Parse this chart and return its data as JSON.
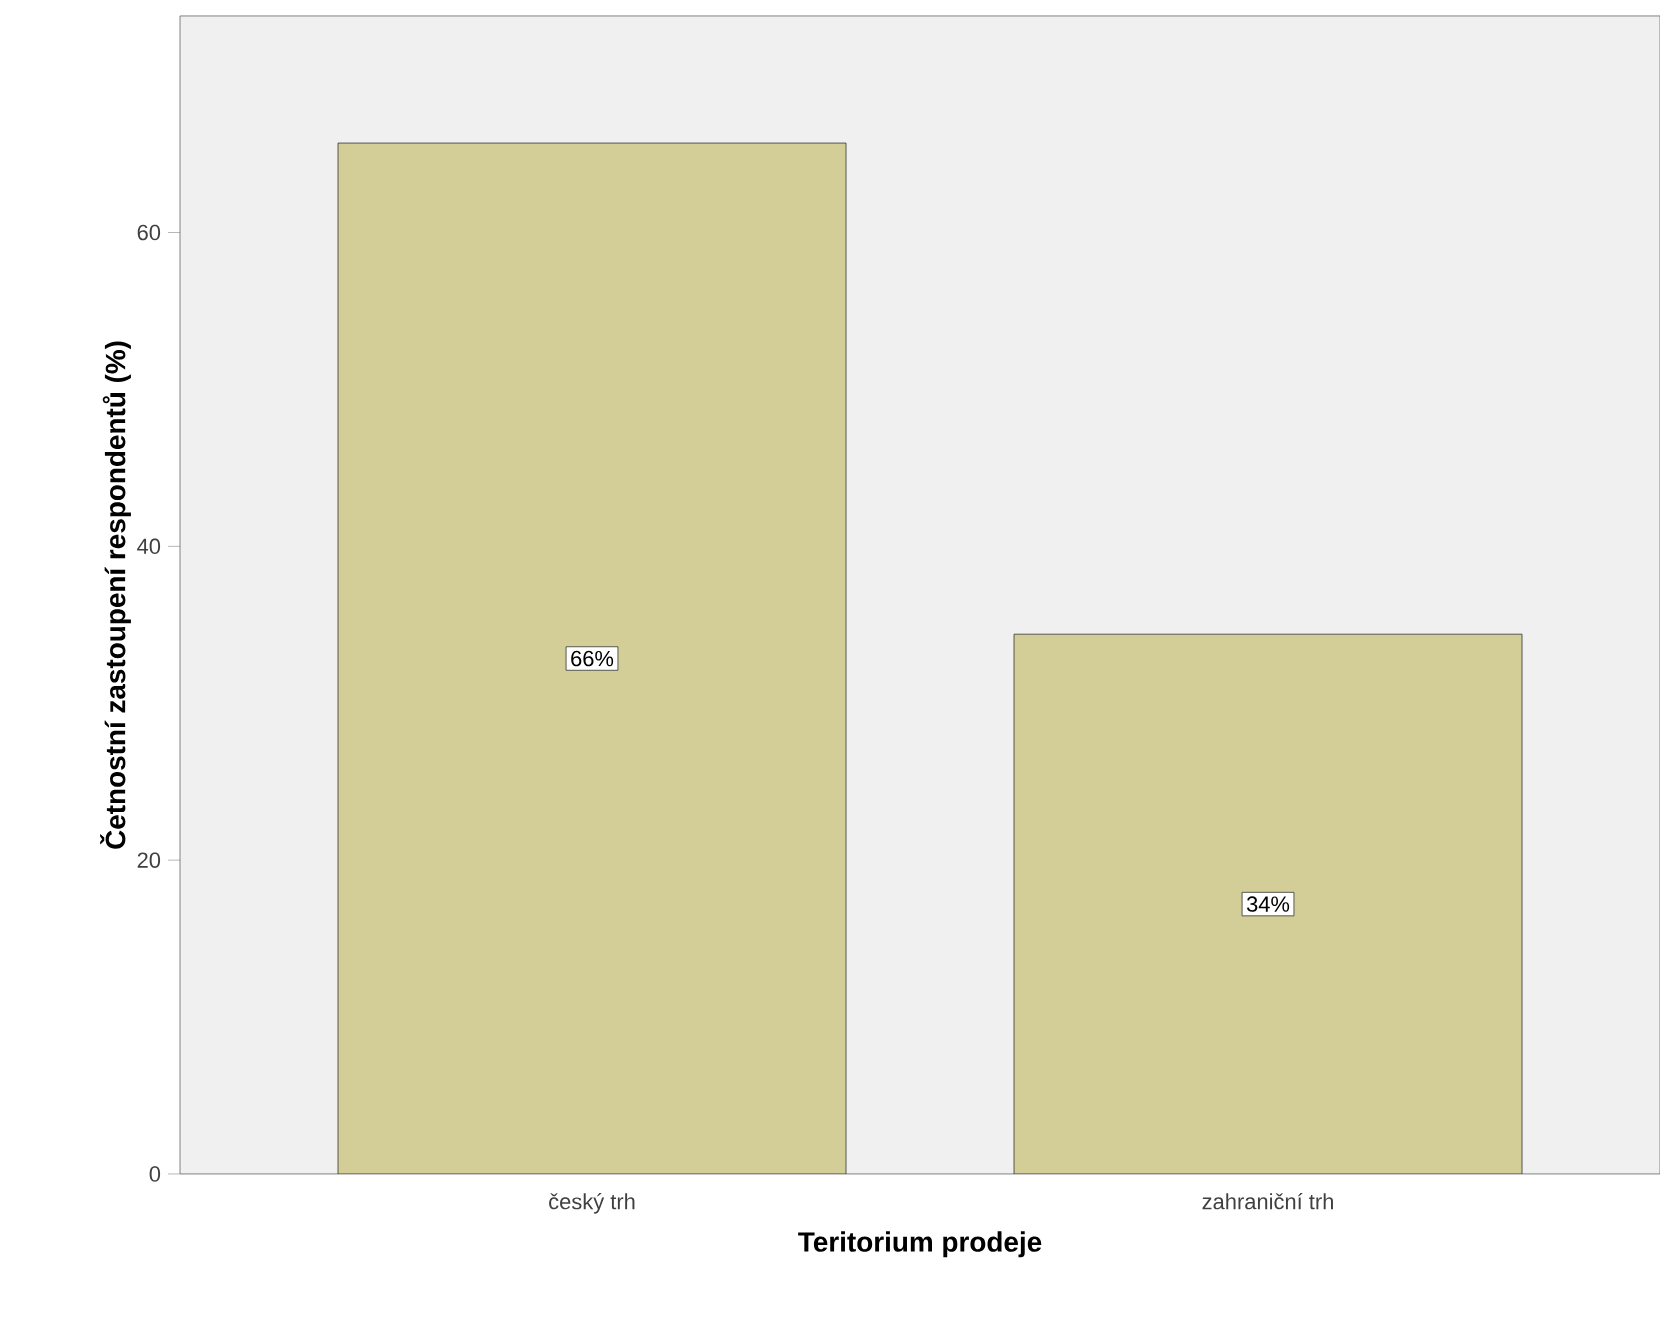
{
  "chart_data": {
    "type": "bar",
    "xlabel": "Teritorium prodeje",
    "ylabel": "Četnostní zastoupení respondentů (%)",
    "categories": [
      "český trh",
      "zahraniční trh"
    ],
    "values": [
      65.7,
      34.4
    ],
    "value_labels": [
      "66%",
      "34%"
    ],
    "color": "#d3ce97",
    "ylim": [
      0,
      73.8
    ],
    "yticks": [
      0,
      20,
      40,
      60
    ]
  }
}
